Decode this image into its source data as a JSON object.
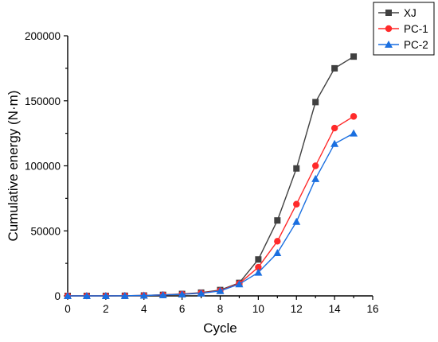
{
  "chart_data": {
    "type": "line",
    "title": "",
    "xlabel": "Cycle",
    "ylabel": "Cumulative energy (N·m)",
    "xlim": [
      0,
      16
    ],
    "ylim": [
      0,
      200000
    ],
    "xticks": [
      "0",
      "2",
      "4",
      "6",
      "8",
      "10",
      "12",
      "14",
      "16"
    ],
    "yticks": [
      "0",
      "50000",
      "100000",
      "150000",
      "200000"
    ],
    "grid": false,
    "legend_position": "top-right",
    "x": [
      0,
      1,
      2,
      3,
      4,
      5,
      6,
      7,
      8,
      9,
      10,
      11,
      12,
      13,
      14,
      15
    ],
    "series": [
      {
        "name": "XJ",
        "color": "#404040",
        "marker": "square",
        "values": [
          0,
          0,
          0,
          100,
          300,
          800,
          1500,
          2500,
          4500,
          10000,
          28000,
          58000,
          98000,
          149000,
          175000,
          184000
        ]
      },
      {
        "name": "PC-1",
        "color": "#ff2a2a",
        "marker": "circle",
        "values": [
          0,
          0,
          0,
          100,
          300,
          700,
          1300,
          2200,
          4000,
          9500,
          22000,
          42000,
          70500,
          100000,
          129000,
          138000
        ]
      },
      {
        "name": "PC-2",
        "color": "#1a6fe0",
        "marker": "triangle",
        "values": [
          0,
          0,
          0,
          100,
          300,
          700,
          1200,
          2000,
          3800,
          9000,
          18000,
          33000,
          57000,
          90000,
          117000,
          125000
        ]
      }
    ]
  }
}
